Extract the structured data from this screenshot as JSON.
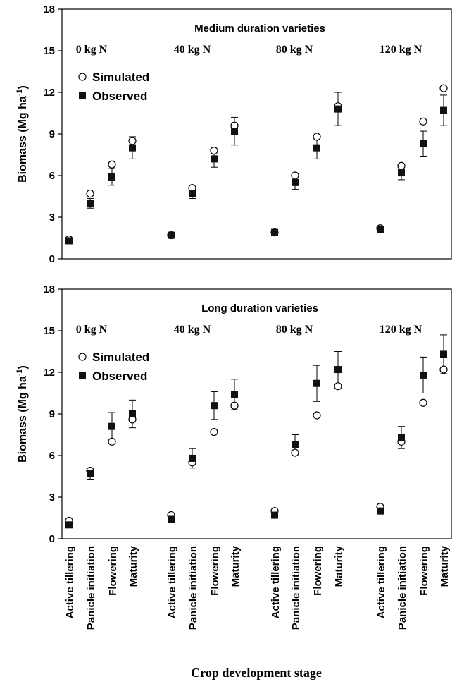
{
  "chart_data": {
    "type": "scatter",
    "xlabel": "Crop development stage",
    "ylabel": "Biomass (Mg ha",
    "ylabel_sup": "-1",
    "ylabel_close": ")",
    "ylim": [
      0,
      18
    ],
    "yticks": [
      "0",
      "3",
      "6",
      "9",
      "12",
      "15",
      "18"
    ],
    "stages": [
      "Active tillering",
      "Panicle initiation",
      "Flowering",
      "Maturity"
    ],
    "legend": {
      "simulated": "Simulated",
      "observed": "Observed"
    },
    "panels": [
      {
        "title": "Medium duration varieties",
        "groups": [
          {
            "label": "0 kg N",
            "simulated": [
              1.4,
              4.7,
              6.8,
              8.5
            ],
            "observed": [
              1.3,
              4.0,
              5.9,
              8.0
            ],
            "error": [
              0.15,
              0.35,
              0.6,
              0.8
            ]
          },
          {
            "label": "40 kg N",
            "simulated": [
              1.7,
              5.1,
              7.8,
              9.6
            ],
            "observed": [
              1.7,
              4.7,
              7.2,
              9.2
            ],
            "error": [
              0.15,
              0.35,
              0.6,
              1.0
            ]
          },
          {
            "label": "80 kg N",
            "simulated": [
              1.9,
              6.0,
              8.8,
              11.0
            ],
            "observed": [
              1.9,
              5.5,
              8.0,
              10.8
            ],
            "error": [
              0.2,
              0.5,
              0.8,
              1.2
            ]
          },
          {
            "label": "120 kg N",
            "simulated": [
              2.2,
              6.7,
              9.9,
              12.3
            ],
            "observed": [
              2.1,
              6.2,
              8.3,
              10.7
            ],
            "error": [
              0.15,
              0.5,
              0.9,
              1.1
            ]
          }
        ]
      },
      {
        "title": "Long duration varieties",
        "groups": [
          {
            "label": "0 kg N",
            "simulated": [
              1.3,
              4.9,
              7.0,
              8.6
            ],
            "observed": [
              1.0,
              4.7,
              8.1,
              9.0
            ],
            "error": [
              0.1,
              0.4,
              1.0,
              1.0
            ]
          },
          {
            "label": "40 kg N",
            "simulated": [
              1.7,
              5.5,
              7.7,
              9.6
            ],
            "observed": [
              1.4,
              5.8,
              9.6,
              10.4
            ],
            "error": [
              0.1,
              0.7,
              1.0,
              1.1
            ]
          },
          {
            "label": "80 kg N",
            "simulated": [
              2.0,
              6.2,
              8.9,
              11.0
            ],
            "observed": [
              1.7,
              6.8,
              11.2,
              12.2
            ],
            "error": [
              0.1,
              0.7,
              1.3,
              1.3
            ]
          },
          {
            "label": "120 kg N",
            "simulated": [
              2.3,
              7.0,
              9.8,
              12.2
            ],
            "observed": [
              2.0,
              7.3,
              11.8,
              13.3
            ],
            "error": [
              0.1,
              0.8,
              1.3,
              1.4
            ]
          }
        ]
      }
    ]
  }
}
